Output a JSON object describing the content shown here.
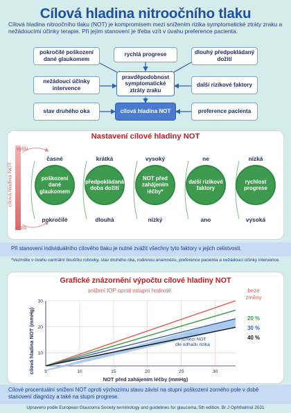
{
  "header": {
    "title": "Cílová hladina nitroočního tlaku",
    "intro": "Cílová hladina nitroočního tlaku (NOT) je kompromisem mezi snížením rizika symptomatické ztráty zraku a nežádoucími účinky terapie. Při jejím stanovení je třeba vzít v úvahu preference pacienta."
  },
  "factors": {
    "left": [
      "pokročilé poškození dané glaukomem",
      "nežádoucí účinky intervence",
      "stav druhého oka"
    ],
    "center": [
      "rychlá progrese",
      "pravděpodobnost symptomatické ztráty zraku",
      "cílová hladina NOT"
    ],
    "right": [
      "dlouhý předpokládaný dožití",
      "další rizikové faktory",
      "preference pacienta"
    ]
  },
  "setting": {
    "title": "Nastavení cílové hladiny NOT",
    "axis_label": "cílová hladina NOT",
    "high_label": "vyšší",
    "low_label": "nižší",
    "columns": [
      {
        "top": "časné",
        "circle": "poškození dané glaukomem",
        "bottom": "pokročilé"
      },
      {
        "top": "krátká",
        "circle": "předpokládaná doba dožití",
        "bottom": "dlouhá"
      },
      {
        "top": "vysoký",
        "circle": "NOT před zahájením léčby*",
        "bottom": "nízký"
      },
      {
        "top": "ne",
        "circle": "další rizikové faktory",
        "bottom": "ano"
      },
      {
        "top": "nízká",
        "circle": "rychlost progrese",
        "bottom": "vysoká"
      }
    ]
  },
  "consider_text": "Při stanovení individuálního cílového tlaku je nutné zvážit všechny tyto faktory v jejich celistvosti.",
  "footnote": "*Vezměte v úvahu centrální tloušťku rohovky, stav druhého oka, rodinnou anamnézu, preference pacienta a nežádoucí účinky intervence.",
  "chart_data": {
    "type": "line",
    "title": "Grafické znázornění výpočtu cílové hladiny NOT",
    "subtitle": "snížení IOP oproti vstupní hodnotě:",
    "xlabel": "NOT před zahájením léčby (mmHg)",
    "ylabel": "cílová hladina NOT (mmHg)",
    "xlim": [
      5,
      33
    ],
    "ylim": [
      5,
      30
    ],
    "xticks": [
      "5",
      "10",
      "15",
      "20",
      "25",
      "30"
    ],
    "yticks": [
      "10",
      "20",
      "30"
    ],
    "series": [
      {
        "name": "beze změny",
        "x": [
          5,
          33
        ],
        "y": [
          5,
          33
        ],
        "color": "#e05a4a"
      },
      {
        "name": "20 %",
        "x": [
          5,
          33
        ],
        "y": [
          4,
          26.4
        ],
        "color": "#3a9a4a"
      },
      {
        "name": "30 %",
        "x": [
          5,
          33
        ],
        "y": [
          3.5,
          23.1
        ],
        "color": "#2f5fb3"
      },
      {
        "name": "40 %",
        "x": [
          5,
          33
        ],
        "y": [
          3,
          19.8
        ],
        "color": "#111111"
      }
    ],
    "band_label": "cílové rozmezí NOT dle odhadu rizika",
    "band_color": "#9fc3ea"
  },
  "bottom_text": "Cílové procentuální snížení NOT oproti výchozímu stavu závisí na stupni poškození zorného pole v době stanovení diagnózy a také na stupni progrese.",
  "source": "Upraveno podle European Glaucoma Society terminology and guidelines for glaucoma, 5th edition. Br J Ophthalmol 2021"
}
